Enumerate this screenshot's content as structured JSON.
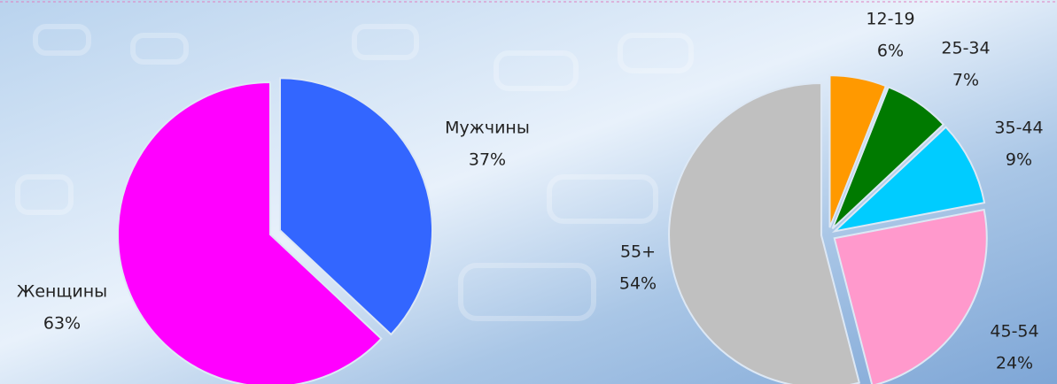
{
  "chart_data": [
    {
      "type": "pie",
      "categories": [
        "Мужчины",
        "Женщины"
      ],
      "values": [
        37,
        63
      ],
      "value_labels": [
        "37%",
        "63%"
      ],
      "colors": [
        "#3366ff",
        "#ff00ff"
      ]
    },
    {
      "type": "pie",
      "categories": [
        "12-19",
        "25-34",
        "35-44",
        "45-54",
        "55+"
      ],
      "values": [
        6,
        7,
        9,
        24,
        54
      ],
      "value_labels": [
        "6%",
        "7%",
        "9%",
        "24%",
        "54%"
      ],
      "colors": [
        "#ff9900",
        "#007a00",
        "#00ccff",
        "#ff99cc",
        "#c0c0c0"
      ]
    }
  ]
}
